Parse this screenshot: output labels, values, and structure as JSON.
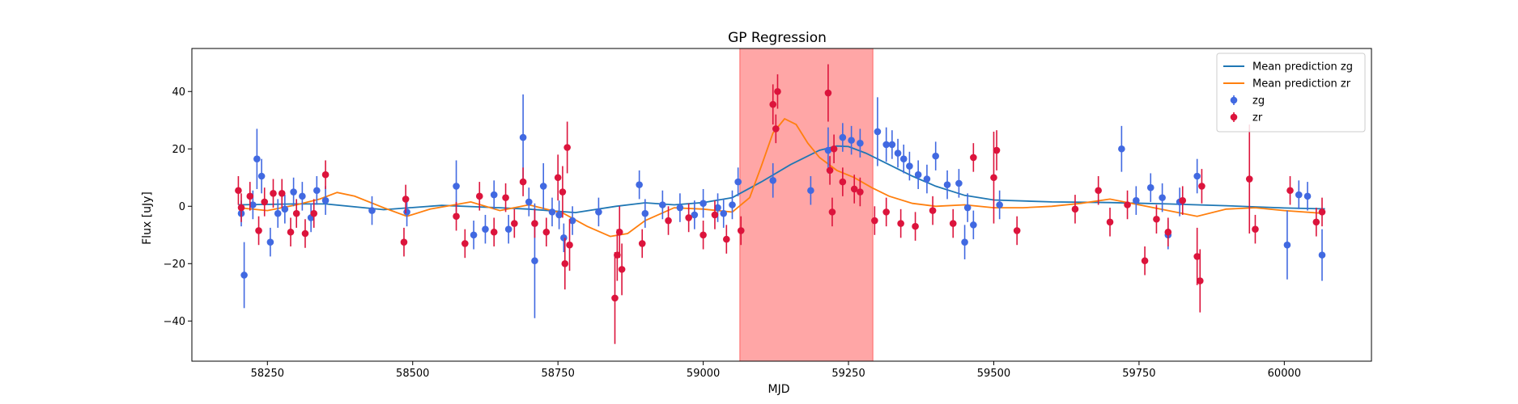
{
  "chart_data": {
    "type": "scatter",
    "title": "GP Regression",
    "xlabel": "MJD",
    "ylabel": "Flux [uJy]",
    "xlim": [
      58120,
      60150
    ],
    "ylim": [
      -54,
      55
    ],
    "xticks": [
      58250,
      58500,
      58750,
      59000,
      59250,
      59500,
      59750,
      60000
    ],
    "yticks": [
      -40,
      -20,
      0,
      20,
      40
    ],
    "grid": false,
    "legend_position": "top-right",
    "shaded_region": {
      "x_start": 59063,
      "x_end": 59292,
      "color": "#ff0000"
    },
    "series": [
      {
        "name": "Mean prediction zg",
        "kind": "line",
        "color": "#1f77b4",
        "x": [
          58200,
          58300,
          58350,
          58450,
          58550,
          58650,
          58700,
          58780,
          58850,
          58900,
          58950,
          59000,
          59050,
          59100,
          59150,
          59200,
          59230,
          59250,
          59280,
          59320,
          59360,
          59400,
          59450,
          59500,
          59600,
          59700,
          59800,
          59900,
          60000,
          60070
        ],
        "y": [
          0.5,
          0.8,
          0.8,
          -1.2,
          0.3,
          -0.5,
          -1.0,
          -2.2,
          0.0,
          1.2,
          0.5,
          1.3,
          3.0,
          8.5,
          14.5,
          19.5,
          21.0,
          20.8,
          18.5,
          14.5,
          10.5,
          7.0,
          3.8,
          2.2,
          1.5,
          1.3,
          0.8,
          0.2,
          -0.6,
          -0.9
        ]
      },
      {
        "name": "Mean prediction zr",
        "kind": "line",
        "color": "#ff7f0e",
        "x": [
          58200,
          58250,
          58300,
          58340,
          58370,
          58400,
          58450,
          58490,
          58530,
          58600,
          58650,
          58700,
          58760,
          58800,
          58840,
          58870,
          58900,
          58950,
          59000,
          59050,
          59080,
          59100,
          59120,
          59140,
          59160,
          59180,
          59200,
          59230,
          59260,
          59290,
          59320,
          59360,
          59400,
          59450,
          59500,
          59550,
          59600,
          59650,
          59700,
          59750,
          59800,
          59850,
          59900,
          59950,
          60000,
          60070
        ],
        "y": [
          -0.5,
          -1.5,
          0.5,
          2.5,
          4.8,
          3.5,
          -0.5,
          -3.5,
          -1.0,
          1.5,
          -1.5,
          0.5,
          -2.5,
          -7.0,
          -10.5,
          -9.5,
          -5.0,
          -0.5,
          -1.0,
          -2.0,
          3.0,
          14.0,
          25.5,
          30.5,
          28.5,
          22.0,
          17.0,
          12.5,
          10.0,
          6.5,
          3.5,
          1.0,
          0.0,
          0.5,
          -0.5,
          -0.5,
          0.0,
          1.0,
          2.5,
          0.5,
          -1.5,
          -3.5,
          -1.0,
          -0.5,
          -1.5,
          -2.5
        ]
      },
      {
        "name": "zg",
        "kind": "errorbar",
        "color": "#4169e1",
        "x": [
          58205,
          58210,
          58225,
          58232,
          58240,
          58255,
          58268,
          58280,
          58295,
          58310,
          58325,
          58335,
          58350,
          58430,
          58490,
          58575,
          58605,
          58625,
          58640,
          58665,
          58690,
          58700,
          58710,
          58725,
          58740,
          58752,
          58760,
          58775,
          58820,
          58890,
          58900,
          58930,
          58960,
          58985,
          59000,
          59025,
          59035,
          59050,
          59060,
          59120,
          59185,
          59215,
          59240,
          59255,
          59270,
          59300,
          59315,
          59325,
          59335,
          59345,
          59355,
          59370,
          59385,
          59400,
          59420,
          59440,
          59450,
          59455,
          59465,
          59510,
          59720,
          59745,
          59770,
          59790,
          59800,
          59820,
          59850,
          60005,
          60025,
          60040,
          60065
        ],
        "y": [
          -2.5,
          -24.0,
          0.5,
          16.5,
          10.5,
          -12.5,
          -2.5,
          -1.0,
          5.0,
          3.5,
          -4.0,
          5.5,
          2.0,
          -1.5,
          -2.0,
          7.0,
          -10.0,
          -8.0,
          4.0,
          -8.0,
          24.0,
          1.5,
          -19.0,
          7.0,
          -2.0,
          -3.0,
          -11.0,
          -5.0,
          -2.0,
          7.5,
          -2.5,
          0.5,
          -0.5,
          -3.0,
          1.0,
          -0.5,
          -2.5,
          0.5,
          8.5,
          9.0,
          5.5,
          19.5,
          24.0,
          23.0,
          22.0,
          26.0,
          21.5,
          21.5,
          18.5,
          16.5,
          14.0,
          11.0,
          9.5,
          17.5,
          7.5,
          8.0,
          -12.5,
          -0.5,
          -6.5,
          0.5,
          20.0,
          2.0,
          6.5,
          3.0,
          -10.0,
          1.5,
          10.5,
          -13.5,
          4.0,
          3.5,
          -17.0
        ],
        "yerr": [
          4.5,
          11.5,
          5.0,
          10.5,
          6.0,
          5.0,
          5.0,
          5.0,
          5.0,
          5.0,
          5.0,
          5.0,
          5.0,
          5.0,
          5.0,
          9.0,
          5.0,
          5.0,
          5.0,
          5.0,
          15.0,
          5.0,
          20.0,
          8.0,
          5.0,
          5.0,
          5.0,
          5.0,
          5.0,
          5.0,
          5.0,
          5.0,
          5.0,
          5.0,
          5.0,
          5.0,
          5.0,
          5.0,
          5.0,
          6.0,
          5.0,
          8.0,
          5.0,
          5.0,
          5.0,
          12.0,
          6.0,
          5.0,
          5.0,
          5.0,
          5.0,
          5.0,
          5.0,
          5.0,
          5.0,
          5.0,
          6.0,
          5.0,
          5.0,
          5.0,
          8.0,
          5.0,
          5.0,
          5.0,
          5.0,
          5.0,
          6.0,
          12.0,
          5.0,
          5.0,
          9.0
        ]
      },
      {
        "name": "zr",
        "kind": "errorbar",
        "color": "#dc143c",
        "x": [
          58200,
          58205,
          58220,
          58235,
          58245,
          58260,
          58275,
          58290,
          58300,
          58315,
          58330,
          58350,
          58485,
          58488,
          58575,
          58590,
          58615,
          58640,
          58660,
          58675,
          58690,
          58710,
          58730,
          58750,
          58758,
          58762,
          58766,
          58770,
          58848,
          58852,
          58856,
          58860,
          58895,
          58940,
          58975,
          59000,
          59020,
          59040,
          59065,
          59120,
          59125,
          59128,
          59215,
          59218,
          59222,
          59225,
          59240,
          59260,
          59270,
          59295,
          59315,
          59340,
          59365,
          59395,
          59430,
          59465,
          59500,
          59505,
          59540,
          59640,
          59680,
          59700,
          59730,
          59760,
          59780,
          59800,
          59825,
          59850,
          59855,
          59858,
          59940,
          59950,
          60010,
          60055,
          60065
        ],
        "y": [
          5.5,
          -0.5,
          3.5,
          -8.5,
          1.5,
          4.5,
          4.5,
          -9.0,
          -2.5,
          -9.5,
          -2.5,
          11.0,
          -12.5,
          2.5,
          -3.5,
          -13.0,
          3.5,
          -9.0,
          3.0,
          -6.0,
          8.5,
          -6.0,
          -9.0,
          10.0,
          5.0,
          -20.0,
          20.5,
          -13.5,
          -32.0,
          -17.0,
          -9.0,
          -22.0,
          -13.0,
          -5.0,
          -4.0,
          -10.0,
          -3.0,
          -11.5,
          -8.5,
          35.5,
          27.0,
          40.0,
          39.5,
          12.5,
          -2.0,
          20.0,
          8.5,
          6.0,
          5.0,
          -5.0,
          -2.0,
          -6.0,
          -7.0,
          -1.5,
          -6.0,
          17.0,
          10.0,
          19.5,
          -8.5,
          -1.0,
          5.5,
          -5.5,
          0.5,
          -19.0,
          -4.5,
          -9.0,
          2.0,
          -17.5,
          -26.0,
          7.0,
          9.5,
          -8.0,
          5.5,
          -5.5,
          -2.0
        ],
        "yerr": [
          5.0,
          5.0,
          5.0,
          5.0,
          5.0,
          5.0,
          5.0,
          5.0,
          5.0,
          5.0,
          5.0,
          5.0,
          5.0,
          5.0,
          5.0,
          5.0,
          5.0,
          5.0,
          5.0,
          5.0,
          5.0,
          5.0,
          5.0,
          8.0,
          9.0,
          9.0,
          9.0,
          9.0,
          16.0,
          9.0,
          9.0,
          9.0,
          5.0,
          5.0,
          5.0,
          5.0,
          5.0,
          5.0,
          5.0,
          7.0,
          5.0,
          6.0,
          10.0,
          5.0,
          5.0,
          5.0,
          5.0,
          5.0,
          5.0,
          5.0,
          5.0,
          5.0,
          5.0,
          5.0,
          5.0,
          5.0,
          16.0,
          7.0,
          5.0,
          5.0,
          5.0,
          5.0,
          5.0,
          5.0,
          5.0,
          5.0,
          5.0,
          10.0,
          11.0,
          6.0,
          19.0,
          5.0,
          5.0,
          5.0,
          5.0
        ]
      }
    ]
  }
}
